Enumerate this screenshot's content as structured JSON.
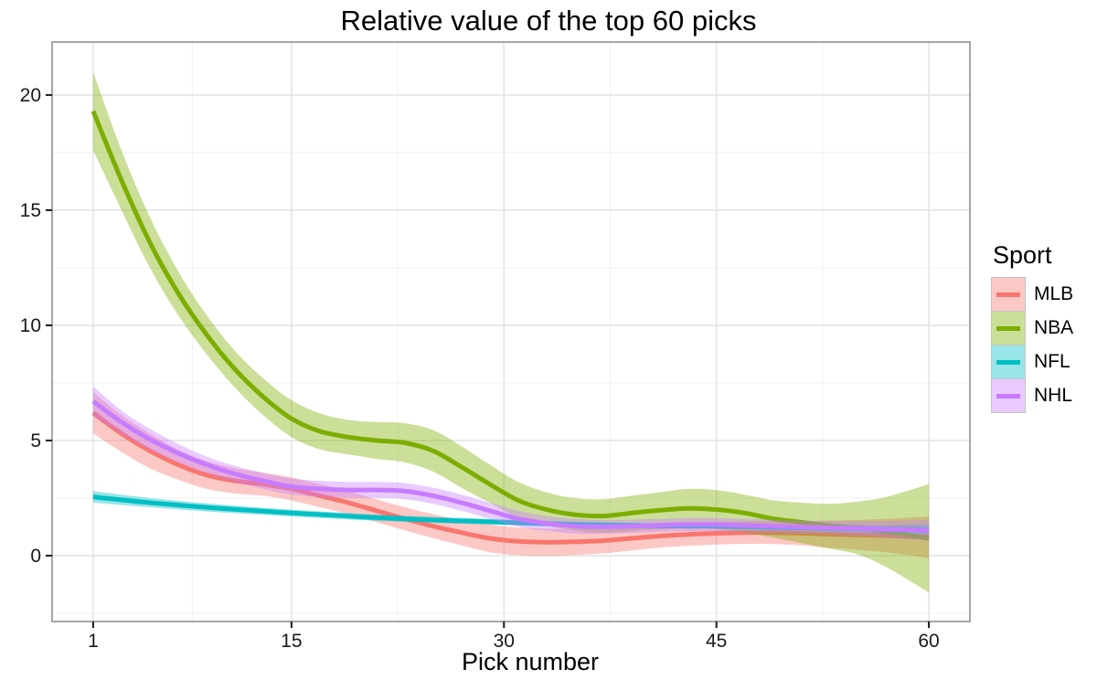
{
  "title": "Relative value of the top 60 picks",
  "legend": {
    "title": "Sport",
    "position": "right"
  },
  "axes": {
    "x": {
      "label": "Pick number",
      "tick_labels": [
        "1",
        "15",
        "30",
        "45",
        "60"
      ]
    },
    "y": {
      "label": "",
      "tick_labels": [
        "0",
        "5",
        "10",
        "15",
        "20"
      ]
    }
  },
  "colors": {
    "mlb": "#F8766D",
    "nba": "#7CAE00",
    "nfl": "#00BFC4",
    "nhl": "#C77CFF",
    "grid_major": "#e4e4e4",
    "grid_minor": "#f2f2f2",
    "panel_border": "#8f8f8f",
    "tick": "#1a1a1a"
  },
  "chart_data": {
    "type": "line",
    "title": "Relative value of the top 60 picks",
    "xlabel": "Pick number",
    "ylabel": "",
    "xlim": [
      -1.9,
      62.9
    ],
    "ylim": [
      -2.86,
      22.3
    ],
    "x_ticks": [
      1,
      15,
      30,
      45,
      60
    ],
    "y_ticks": [
      0,
      5,
      10,
      15,
      20
    ],
    "x_minor": [
      8,
      22.5,
      37.5,
      52.5
    ],
    "y_minor": [
      -2.5,
      2.5,
      7.5,
      12.5,
      17.5
    ],
    "grid": true,
    "legend_position": "right",
    "ribbon_alpha": 0.4,
    "series": [
      {
        "name": "MLB",
        "color": "#F8766D",
        "x": [
          1,
          3,
          5,
          7,
          9,
          11,
          13,
          15,
          17,
          19,
          21,
          23,
          25,
          27,
          29,
          31,
          33,
          35,
          37,
          39,
          41,
          43,
          45,
          47,
          49,
          51,
          53,
          55,
          57,
          60
        ],
        "y": [
          6.2,
          5.3,
          4.55,
          3.95,
          3.5,
          3.25,
          3.1,
          2.9,
          2.6,
          2.3,
          1.95,
          1.6,
          1.28,
          1.0,
          0.75,
          0.62,
          0.58,
          0.6,
          0.65,
          0.75,
          0.85,
          0.92,
          0.97,
          1.0,
          1.0,
          0.97,
          0.93,
          0.9,
          0.87,
          0.8
        ],
        "hi": [
          7.1,
          6.1,
          5.3,
          4.6,
          4.1,
          3.8,
          3.6,
          3.4,
          3.1,
          2.8,
          2.45,
          2.1,
          1.8,
          1.55,
          1.35,
          1.22,
          1.17,
          1.17,
          1.2,
          1.28,
          1.35,
          1.42,
          1.46,
          1.49,
          1.5,
          1.5,
          1.52,
          1.55,
          1.6,
          1.7
        ],
        "lo": [
          5.3,
          4.5,
          3.8,
          3.3,
          2.9,
          2.7,
          2.6,
          2.4,
          2.1,
          1.8,
          1.45,
          1.1,
          0.76,
          0.45,
          0.15,
          0.02,
          -0.01,
          0.03,
          0.1,
          0.22,
          0.35,
          0.42,
          0.48,
          0.51,
          0.5,
          0.44,
          0.34,
          0.25,
          0.14,
          -0.1
        ]
      },
      {
        "name": "NBA",
        "color": "#7CAE00",
        "x": [
          1,
          3,
          5,
          7,
          9,
          11,
          13,
          15,
          17,
          19,
          21,
          23,
          25,
          27,
          29,
          31,
          33,
          35,
          37,
          39,
          41,
          43,
          45,
          47,
          49,
          51,
          53,
          55,
          57,
          60
        ],
        "y": [
          19.3,
          16.3,
          13.6,
          11.4,
          9.6,
          8.1,
          6.9,
          5.95,
          5.4,
          5.15,
          5.0,
          4.9,
          4.55,
          3.85,
          3.1,
          2.4,
          2.0,
          1.78,
          1.72,
          1.85,
          1.97,
          2.05,
          2.0,
          1.85,
          1.6,
          1.45,
          1.3,
          1.2,
          1.05,
          0.75
        ],
        "hi": [
          21.0,
          17.6,
          14.7,
          12.35,
          10.45,
          8.9,
          7.7,
          6.75,
          6.18,
          5.9,
          5.8,
          5.75,
          5.45,
          4.75,
          3.95,
          3.2,
          2.75,
          2.5,
          2.45,
          2.6,
          2.75,
          2.9,
          2.85,
          2.65,
          2.4,
          2.3,
          2.25,
          2.35,
          2.55,
          3.1
        ],
        "lo": [
          17.6,
          15.0,
          12.5,
          10.45,
          8.75,
          7.3,
          6.1,
          5.15,
          4.62,
          4.4,
          4.2,
          4.05,
          3.65,
          2.95,
          2.3,
          1.65,
          1.3,
          1.1,
          1.0,
          1.07,
          1.15,
          1.2,
          1.15,
          1.0,
          0.78,
          0.55,
          0.3,
          0.05,
          -0.5,
          -1.6
        ]
      },
      {
        "name": "NFL",
        "color": "#00BFC4",
        "x": [
          1,
          5,
          10,
          15,
          20,
          25,
          30,
          35,
          40,
          45,
          50,
          55,
          60
        ],
        "y": [
          2.55,
          2.3,
          2.05,
          1.85,
          1.68,
          1.55,
          1.45,
          1.35,
          1.3,
          1.28,
          1.22,
          1.17,
          1.12
        ],
        "hi": [
          2.8,
          2.5,
          2.22,
          2.0,
          1.82,
          1.68,
          1.57,
          1.47,
          1.42,
          1.39,
          1.34,
          1.32,
          1.33
        ],
        "lo": [
          2.3,
          2.1,
          1.88,
          1.7,
          1.54,
          1.42,
          1.33,
          1.23,
          1.18,
          1.17,
          1.1,
          1.02,
          0.91
        ]
      },
      {
        "name": "NHL",
        "color": "#C77CFF",
        "x": [
          1,
          3,
          5,
          7,
          9,
          11,
          13,
          15,
          17,
          19,
          21,
          23,
          25,
          27,
          29,
          31,
          33,
          35,
          37,
          39,
          41,
          43,
          45,
          47,
          49,
          51,
          53,
          55,
          57,
          60
        ],
        "y": [
          6.7,
          5.8,
          5.05,
          4.45,
          3.95,
          3.55,
          3.25,
          3.0,
          2.9,
          2.85,
          2.85,
          2.8,
          2.6,
          2.3,
          1.95,
          1.6,
          1.4,
          1.28,
          1.25,
          1.27,
          1.32,
          1.35,
          1.35,
          1.31,
          1.27,
          1.24,
          1.21,
          1.18,
          1.15,
          1.1
        ],
        "hi": [
          7.35,
          6.3,
          5.5,
          4.85,
          4.3,
          3.9,
          3.6,
          3.35,
          3.25,
          3.2,
          3.2,
          3.15,
          2.95,
          2.65,
          2.3,
          1.95,
          1.72,
          1.6,
          1.55,
          1.56,
          1.6,
          1.64,
          1.64,
          1.6,
          1.56,
          1.52,
          1.5,
          1.5,
          1.51,
          1.55
        ],
        "lo": [
          6.05,
          5.3,
          4.6,
          4.05,
          3.6,
          3.2,
          2.9,
          2.65,
          2.55,
          2.5,
          2.5,
          2.45,
          2.25,
          1.95,
          1.6,
          1.25,
          1.08,
          0.96,
          0.95,
          0.98,
          1.04,
          1.06,
          1.06,
          1.02,
          0.98,
          0.96,
          0.92,
          0.86,
          0.79,
          0.65
        ]
      }
    ]
  }
}
